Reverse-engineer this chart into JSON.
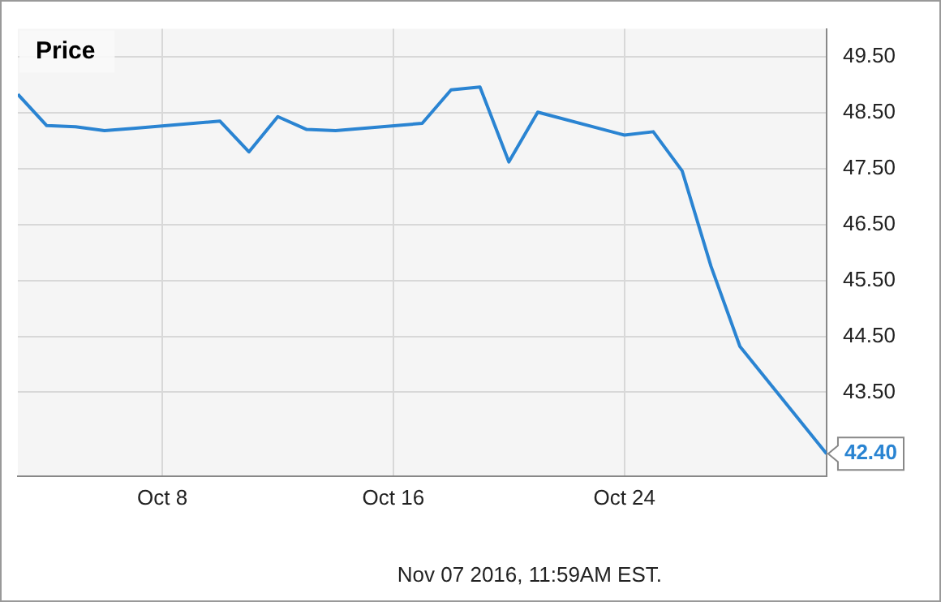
{
  "chart_data": {
    "type": "line",
    "title": "Price",
    "x": [
      "2016-10-03",
      "2016-10-04",
      "2016-10-05",
      "2016-10-06",
      "2016-10-07",
      "2016-10-10",
      "2016-10-11",
      "2016-10-12",
      "2016-10-13",
      "2016-10-14",
      "2016-10-17",
      "2016-10-18",
      "2016-10-19",
      "2016-10-20",
      "2016-10-21",
      "2016-10-24",
      "2016-10-25",
      "2016-10-26",
      "2016-10-27",
      "2016-10-28",
      "2016-10-31"
    ],
    "series": [
      {
        "color": "#2a84d2",
        "values": [
          48.83,
          48.27,
          48.25,
          48.18,
          48.22,
          48.35,
          47.8,
          48.43,
          48.2,
          48.18,
          48.31,
          48.91,
          48.96,
          47.62,
          48.51,
          48.1,
          48.16,
          47.46,
          45.75,
          44.32,
          42.4
        ],
        "value_labels": [
          null,
          null,
          null,
          null,
          null,
          null,
          null,
          null,
          null,
          null,
          null,
          null,
          null,
          null,
          null,
          null,
          null,
          null,
          null,
          null,
          "42.40"
        ]
      }
    ],
    "xlim": [
      "2016-10-03",
      "2016-10-31"
    ],
    "xticks": [
      {
        "value": "2016-10-08",
        "label": "Oct 8"
      },
      {
        "value": "2016-10-16",
        "label": "Oct 16"
      },
      {
        "value": "2016-10-24",
        "label": "Oct 24"
      }
    ],
    "ylim": [
      42,
      50
    ],
    "yticks": [
      {
        "value": 43.5,
        "label": "43.50"
      },
      {
        "value": 44.5,
        "label": "44.50"
      },
      {
        "value": 45.5,
        "label": "45.50"
      },
      {
        "value": 46.5,
        "label": "46.50"
      },
      {
        "value": 47.5,
        "label": "47.50"
      },
      {
        "value": 48.5,
        "label": "48.50"
      },
      {
        "value": 49.5,
        "label": "49.50"
      }
    ],
    "grid": true,
    "legend": false,
    "marker": "none",
    "line_style": "solid",
    "annotations": [
      "Nov 07 2016, 11:59AM EST."
    ]
  }
}
